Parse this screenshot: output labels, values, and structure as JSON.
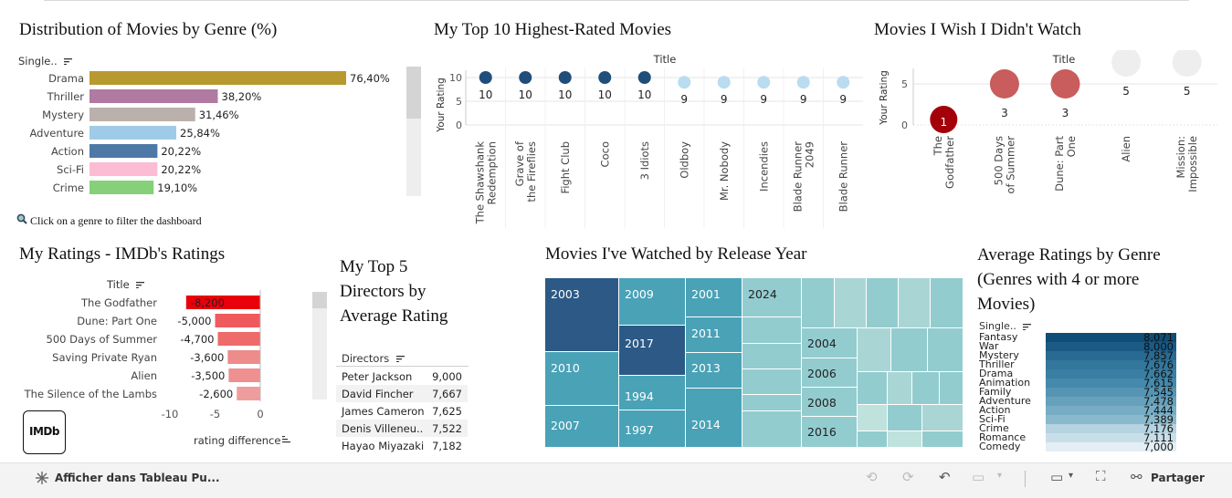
{
  "titles": {
    "genre_dist": "Distribution of Movies by Genre (%)",
    "top10": "My Top 10 Highest-Rated Movies",
    "wish": "Movies I Wish I Didn't Watch",
    "diff": "My Ratings - IMDb's Ratings",
    "directors": "My Top 5 Directors by Average Rating",
    "release": "Movies I've Watched by Release Year",
    "avg_genre": "Average Ratings by Genre (Genres with 4 or more Movies)"
  },
  "genre_dist": {
    "header": "Single..",
    "filter_hint": "Click on a genre to filter the dashboard"
  },
  "top10": {
    "axis_title": "Title",
    "ylabel": "Your Rating"
  },
  "wish": {
    "axis_title": "Title",
    "ylabel": "Your Rating"
  },
  "diff": {
    "header": "Title",
    "xlabel": "rating difference",
    "logo": "IMDb"
  },
  "directors": {
    "header": "Directors"
  },
  "avg_genre": {
    "header": "Single.."
  },
  "footer": {
    "view_label": "Afficher dans Tableau Pu...",
    "share_label": "Partager"
  },
  "colors": {
    "dark_navy": "#2c5985",
    "teal": "#4aa2b7",
    "light_teal": "#93cccf",
    "highlight_red": "#e8000b",
    "dark_red": "#a4000a",
    "muted_red": "#c95c5c",
    "light_blue_dot": "#b9dcf0",
    "navy_dot": "#1f4e7a"
  },
  "chart_data": [
    {
      "type": "bar",
      "id": "genre_dist",
      "categories": [
        "Drama",
        "Thriller",
        "Mystery",
        "Adventure",
        "Action",
        "Sci-Fi",
        "Crime"
      ],
      "values": [
        76.4,
        38.2,
        31.46,
        25.84,
        20.22,
        20.22,
        19.1
      ],
      "labels": [
        "76,40%",
        "38,20%",
        "31,46%",
        "25,84%",
        "20,22%",
        "20,22%",
        "19,10%"
      ],
      "colors": [
        "#b8992f",
        "#b07aa1",
        "#bab0ac",
        "#9fcbe8",
        "#4e79a7",
        "#fbbcd4",
        "#86d07a"
      ]
    },
    {
      "type": "scatter",
      "id": "top10",
      "categories": [
        "The Shawshank Redemption",
        "Grave of the Fireflies",
        "Fight Club",
        "Coco",
        "3 Idiots",
        "Oldboy",
        "Mr. Nobody",
        "Incendies",
        "Blade Runner 2049",
        "Blade Runner"
      ],
      "values": [
        10,
        10,
        10,
        10,
        10,
        9,
        9,
        9,
        9,
        9
      ],
      "ylim": [
        0,
        10
      ],
      "yticks": [
        0,
        5,
        10
      ]
    },
    {
      "type": "scatter",
      "id": "wish",
      "categories": [
        "The Godfather",
        "500 Days of Summer",
        "Dune: Part One",
        "Alien",
        "Mission: Impossible"
      ],
      "values": [
        1,
        3,
        3,
        5,
        5
      ],
      "ylim": [
        0,
        5
      ],
      "yticks": [
        0,
        5
      ]
    },
    {
      "type": "bar",
      "id": "diff",
      "categories": [
        "The Godfather",
        "Dune: Part One",
        "500 Days of Summer",
        "Saving Private Ryan",
        "Alien",
        "The Silence of the Lambs"
      ],
      "values": [
        -8.2,
        -5.0,
        -4.7,
        -3.6,
        -3.5,
        -2.6
      ],
      "labels": [
        "-8,200",
        "-5,000",
        "-4,700",
        "-3,600",
        "-3,500",
        "-2,600"
      ],
      "xlim": [
        -10,
        0
      ],
      "xticks": [
        -10,
        -5,
        0
      ],
      "xtick_labels": [
        "-10",
        "-5",
        "0"
      ]
    },
    {
      "type": "table",
      "id": "directors",
      "rows": [
        [
          "Peter Jackson",
          "9,000"
        ],
        [
          "David Fincher",
          "7,667"
        ],
        [
          "James Cameron",
          "7,625"
        ],
        [
          "Denis Villeneu..",
          "7,522"
        ],
        [
          "Hayao Miyazaki",
          "7,182"
        ]
      ]
    },
    {
      "type": "heatmap",
      "id": "release",
      "labels": [
        "2003",
        "2009",
        "2001",
        "2024",
        "2010",
        "2017",
        "2011",
        "2004",
        "1994",
        "2013",
        "2006",
        "2008",
        "2007",
        "1997",
        "2014",
        "2016"
      ]
    },
    {
      "type": "bar",
      "id": "avg_genre",
      "categories": [
        "Fantasy",
        "War",
        "Mystery",
        "Thriller",
        "Drama",
        "Animation",
        "Family",
        "Adventure",
        "Action",
        "Sci-Fi",
        "Crime",
        "Romance",
        "Comedy"
      ],
      "values": [
        8.071,
        8.0,
        7.857,
        7.676,
        7.662,
        7.615,
        7.545,
        7.478,
        7.444,
        7.389,
        7.176,
        7.111,
        7.0
      ],
      "labels": [
        "8,071",
        "8,000",
        "7,857",
        "7,676",
        "7,662",
        "7,615",
        "7,545",
        "7,478",
        "7,444",
        "7,389",
        "7,176",
        "7,111",
        "7,000"
      ]
    }
  ]
}
